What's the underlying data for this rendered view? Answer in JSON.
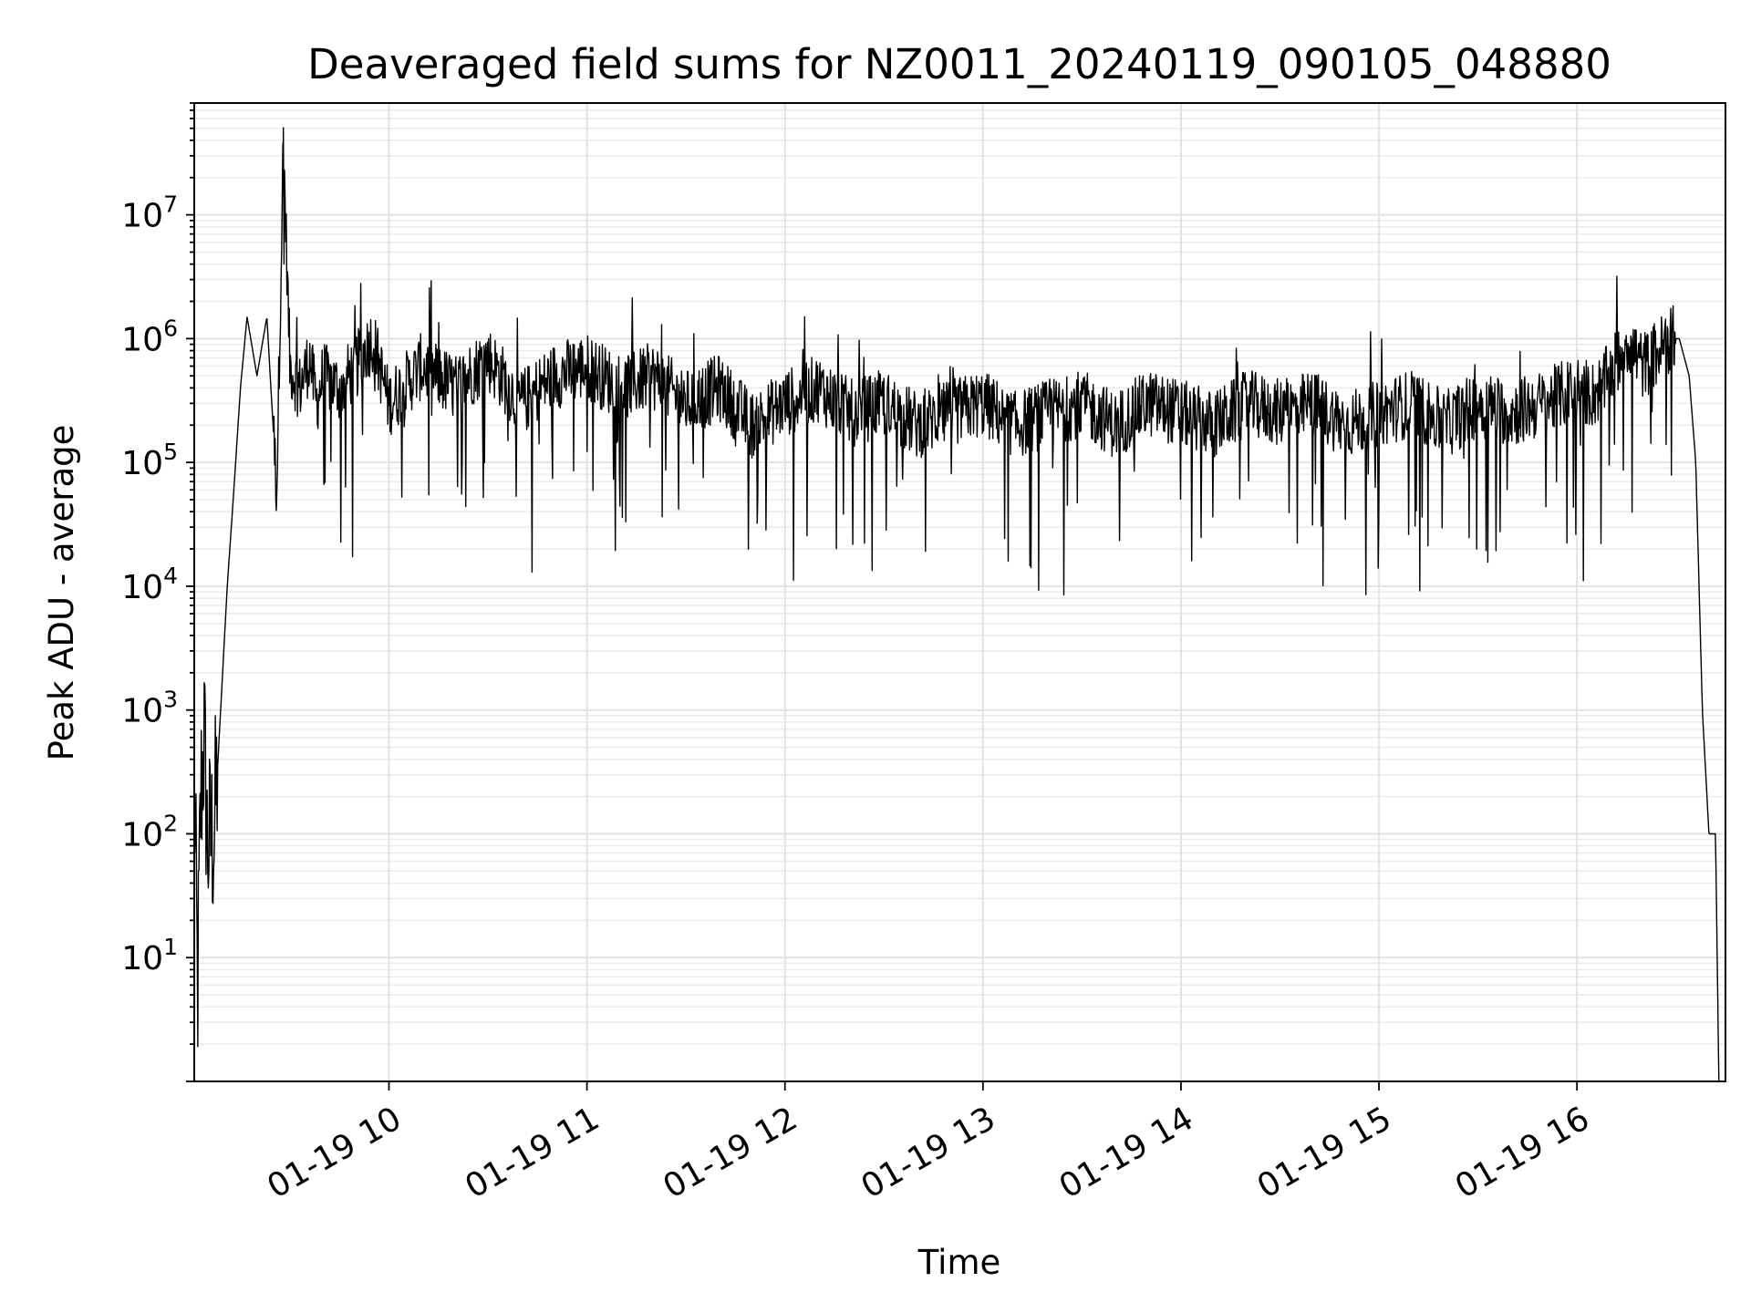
{
  "chart_data": {
    "type": "line",
    "title": "Deaveraged field sums for NZ0011_20240119_090105_048880",
    "xlabel": "Time",
    "ylabel": "Peak ADU - average",
    "yscale": "log",
    "xlim": [
      "2024-01-19 09:01",
      "2024-01-19 16:45"
    ],
    "ylim": [
      1,
      80000000
    ],
    "grid": true,
    "line_color": "#000000",
    "x_ticks": [
      "01-19 10",
      "01-19 11",
      "01-19 12",
      "01-19 13",
      "01-19 14",
      "01-19 15",
      "01-19 16"
    ],
    "y_ticks": [
      {
        "base": "10",
        "exp": "1"
      },
      {
        "base": "10",
        "exp": "2"
      },
      {
        "base": "10",
        "exp": "3"
      },
      {
        "base": "10",
        "exp": "4"
      },
      {
        "base": "10",
        "exp": "5"
      },
      {
        "base": "10",
        "exp": "6"
      },
      {
        "base": "10",
        "exp": "7"
      }
    ],
    "series": [
      {
        "x": [
          "09:01",
          "09:02",
          "09:03",
          "09:04",
          "09:05",
          "09:07",
          "09:09",
          "09:11",
          "09:13",
          "09:15",
          "09:17",
          "09:20",
          "09:23",
          "09:26",
          "09:28",
          "09:30",
          "09:33",
          "09:36",
          "09:38",
          "09:40",
          "09:45",
          "09:50",
          "09:55",
          "10:00",
          "10:10",
          "10:20",
          "10:30",
          "10:40",
          "10:50",
          "11:00",
          "11:10",
          "11:20",
          "11:30",
          "11:40",
          "11:50",
          "12:00",
          "12:10",
          "12:20",
          "12:30",
          "12:40",
          "12:50",
          "13:00",
          "13:10",
          "13:20",
          "13:30",
          "13:40",
          "13:50",
          "14:00",
          "14:10",
          "14:20",
          "14:30",
          "14:40",
          "14:50",
          "15:00",
          "15:10",
          "15:20",
          "15:30",
          "15:40",
          "15:50",
          "16:00",
          "16:05",
          "16:10",
          "16:15",
          "16:20",
          "16:25",
          "16:28",
          "16:31",
          "16:34",
          "16:36",
          "16:38",
          "16:40",
          "16:42",
          "16:43"
        ],
        "y": [
          300,
          5,
          200,
          600,
          80,
          100,
          1000,
          10000,
          60000,
          400000,
          1500000,
          500000,
          1500000,
          60000,
          40000000,
          600000,
          400000,
          700000,
          300000,
          500000,
          400000,
          600000,
          1000000,
          300000,
          600000,
          400000,
          700000,
          300000,
          500000,
          600000,
          400000,
          500000,
          300000,
          400000,
          200000,
          300000,
          400000,
          250000,
          300000,
          200000,
          250000,
          300000,
          200000,
          250000,
          300000,
          200000,
          300000,
          250000,
          200000,
          300000,
          250000,
          300000,
          200000,
          250000,
          300000,
          200000,
          300000,
          250000,
          300000,
          400000,
          350000,
          500000,
          1000000,
          600000,
          800000,
          1000000,
          1000000,
          500000,
          100000,
          1000,
          100,
          100,
          1
        ]
      }
    ]
  }
}
